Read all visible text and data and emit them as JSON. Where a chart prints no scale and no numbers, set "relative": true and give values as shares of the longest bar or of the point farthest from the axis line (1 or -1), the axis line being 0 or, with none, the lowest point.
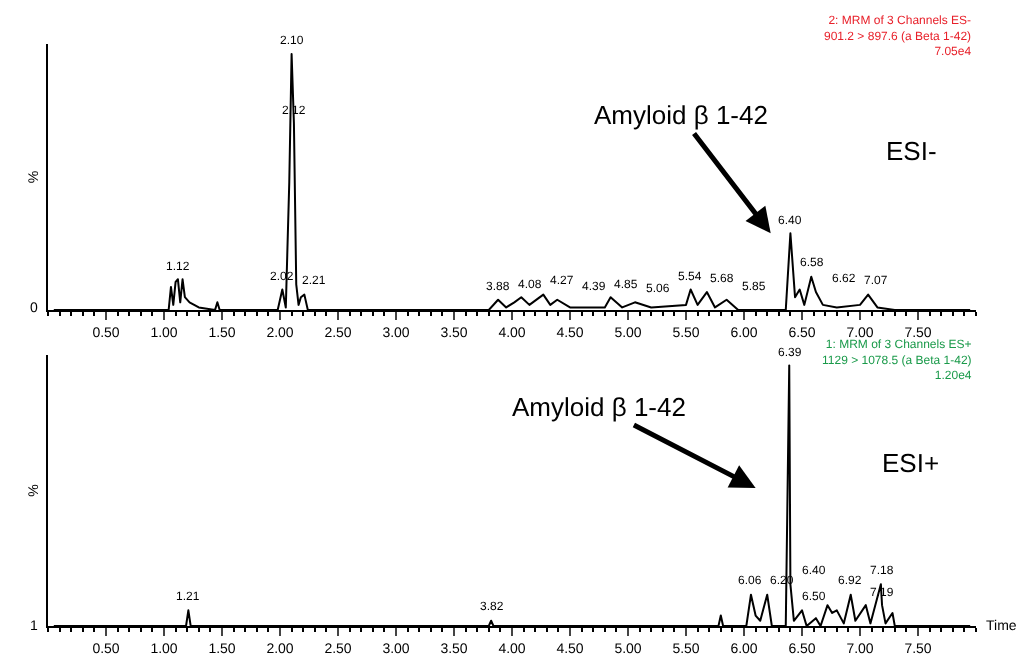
{
  "chart_data": [
    {
      "type": "line",
      "relative": true,
      "ylabel": "%",
      "xlim": [
        0,
        8.0
      ],
      "xticks": [
        {
          "value": 0.5,
          "label": "0.50"
        },
        {
          "value": 1.0,
          "label": "1.00"
        },
        {
          "value": 1.5,
          "label": "1.50"
        },
        {
          "value": 2.0,
          "label": "2.00"
        },
        {
          "value": 2.5,
          "label": "2.50"
        },
        {
          "value": 3.0,
          "label": "3.00"
        },
        {
          "value": 3.5,
          "label": "3.50"
        },
        {
          "value": 4.0,
          "label": "4.00"
        },
        {
          "value": 4.5,
          "label": "4.50"
        },
        {
          "value": 5.0,
          "label": "5.00"
        },
        {
          "value": 5.5,
          "label": "5.50"
        },
        {
          "value": 6.0,
          "label": "6.00"
        },
        {
          "value": 6.5,
          "label": "6.50"
        },
        {
          "value": 7.0,
          "label": "7.00"
        },
        {
          "value": 7.5,
          "label": "7.50"
        }
      ],
      "series": [
        {
          "color": "#000000",
          "x": [
            0.05,
            1.04,
            1.06,
            1.08,
            1.1,
            1.12,
            1.14,
            1.16,
            1.18,
            1.22,
            1.3,
            1.44,
            1.46,
            1.48,
            1.98,
            2.02,
            2.05,
            2.08,
            2.1,
            2.12,
            2.14,
            2.16,
            2.18,
            2.21,
            2.24,
            3.8,
            3.88,
            3.95,
            4.02,
            4.08,
            4.15,
            4.27,
            4.33,
            4.39,
            4.5,
            4.8,
            4.85,
            4.95,
            5.06,
            5.2,
            5.5,
            5.54,
            5.6,
            5.68,
            5.75,
            5.85,
            5.95,
            6.36,
            6.4,
            6.44,
            6.48,
            6.52,
            6.58,
            6.62,
            6.68,
            6.8,
            7.0,
            7.07,
            7.15,
            7.3,
            7.95
          ],
          "values": [
            0,
            0,
            0.09,
            0.02,
            0.11,
            0.12,
            0.03,
            0.12,
            0.05,
            0.03,
            0.01,
            0,
            0.03,
            0,
            0,
            0.08,
            0.01,
            0.5,
            1,
            0.73,
            0.1,
            0.02,
            0.05,
            0.06,
            0,
            0,
            0.04,
            0.01,
            0.03,
            0.05,
            0.02,
            0.06,
            0.02,
            0.04,
            0.01,
            0.01,
            0.05,
            0.01,
            0.03,
            0.01,
            0.02,
            0.08,
            0.02,
            0.07,
            0.01,
            0.04,
            0,
            0,
            0.3,
            0.05,
            0.08,
            0.02,
            0.13,
            0.07,
            0.02,
            0.01,
            0.02,
            0.06,
            0.01,
            0,
            0
          ]
        }
      ],
      "annotations": [
        "Amyloid β 1-42",
        "ESI-",
        "2: MRM of 3 Channels ES-\n901.2 > 897.6 (a Beta 1-42)\n7.05e4",
        "0",
        {
          "text": "1.12",
          "x": 1.12,
          "y": 0.12
        },
        {
          "text": "2.02",
          "x": 2.02,
          "y": 0.08
        },
        {
          "text": "2.10",
          "x": 2.1,
          "y": 1
        },
        {
          "text": "2.12",
          "x": 2.12,
          "y": 0.73
        },
        {
          "text": "2.21",
          "x": 2.21,
          "y": 0.06
        },
        {
          "text": "3.88",
          "x": 3.88,
          "y": 0.04
        },
        {
          "text": "4.08",
          "x": 4.08,
          "y": 0.05
        },
        {
          "text": "4.27",
          "x": 4.27,
          "y": 0.06
        },
        {
          "text": "4.39",
          "x": 4.39,
          "y": 0.04
        },
        {
          "text": "4.85",
          "x": 4.85,
          "y": 0.05
        },
        {
          "text": "5.06",
          "x": 5.06,
          "y": 0.03
        },
        {
          "text": "5.54",
          "x": 5.54,
          "y": 0.08
        },
        {
          "text": "5.68",
          "x": 5.68,
          "y": 0.07
        },
        {
          "text": "5.85",
          "x": 5.85,
          "y": 0.04
        },
        {
          "text": "6.40",
          "x": 6.4,
          "y": 0.3
        },
        {
          "text": "6.58",
          "x": 6.58,
          "y": 0.13
        },
        {
          "text": "6.62",
          "x": 6.62,
          "y": 0.07
        },
        {
          "text": "7.07",
          "x": 7.07,
          "y": 0.06
        }
      ]
    },
    {
      "type": "line",
      "relative": true,
      "ylabel": "%",
      "xlabel": "Time",
      "xlim": [
        0,
        8.0
      ],
      "xticks": [
        {
          "value": 0.5,
          "label": "0.50"
        },
        {
          "value": 1.0,
          "label": "1.00"
        },
        {
          "value": 1.5,
          "label": "1.50"
        },
        {
          "value": 2.0,
          "label": "2.00"
        },
        {
          "value": 2.5,
          "label": "2.50"
        },
        {
          "value": 3.0,
          "label": "3.00"
        },
        {
          "value": 3.5,
          "label": "3.50"
        },
        {
          "value": 4.0,
          "label": "4.00"
        },
        {
          "value": 4.5,
          "label": "4.50"
        },
        {
          "value": 5.0,
          "label": "5.00"
        },
        {
          "value": 5.5,
          "label": "5.50"
        },
        {
          "value": 6.0,
          "label": "6.00"
        },
        {
          "value": 6.5,
          "label": "6.50"
        },
        {
          "value": 7.0,
          "label": "7.00"
        },
        {
          "value": 7.5,
          "label": "7.50"
        }
      ],
      "series": [
        {
          "color": "#000000",
          "x": [
            0.05,
            1.19,
            1.21,
            1.23,
            3.8,
            3.82,
            3.84,
            5.78,
            5.8,
            5.82,
            6.02,
            6.06,
            6.1,
            6.14,
            6.2,
            6.24,
            6.36,
            6.39,
            6.4,
            6.43,
            6.5,
            6.54,
            6.62,
            6.66,
            6.72,
            6.76,
            6.8,
            6.86,
            6.92,
            6.96,
            7.05,
            7.09,
            7.18,
            7.19,
            7.22,
            7.28,
            7.3,
            7.95
          ],
          "values": [
            0,
            0,
            0.06,
            0,
            0,
            0.02,
            0,
            0,
            0.04,
            0,
            0,
            0.12,
            0.04,
            0.02,
            0.12,
            0,
            0,
            1,
            0.16,
            0.02,
            0.06,
            0,
            0.03,
            0,
            0.08,
            0.05,
            0.06,
            0.01,
            0.12,
            0.02,
            0.08,
            0.01,
            0.16,
            0.08,
            0.01,
            0.05,
            0,
            0
          ]
        }
      ],
      "annotations": [
        "Amyloid β 1-42",
        "ESI+",
        "1: MRM of 3 Channels ES+\n1129 > 1078.5 (a Beta 1-42)\n1.20e4",
        "1",
        {
          "text": "1.21",
          "x": 1.21,
          "y": 0.06
        },
        {
          "text": "3.82",
          "x": 3.82,
          "y": 0.02
        },
        {
          "text": "6.06",
          "x": 6.06,
          "y": 0.12
        },
        {
          "text": "6.20",
          "x": 6.2,
          "y": 0.12
        },
        {
          "text": "6.39",
          "x": 6.39,
          "y": 1
        },
        {
          "text": "6.40",
          "x": 6.4,
          "y": 0.16
        },
        {
          "text": "6.50",
          "x": 6.5,
          "y": 0.06
        },
        {
          "text": "6.92",
          "x": 6.92,
          "y": 0.12
        },
        {
          "text": "7.18",
          "x": 7.18,
          "y": 0.16
        },
        {
          "text": "7.19",
          "x": 7.19,
          "y": 0.08
        }
      ]
    }
  ]
}
